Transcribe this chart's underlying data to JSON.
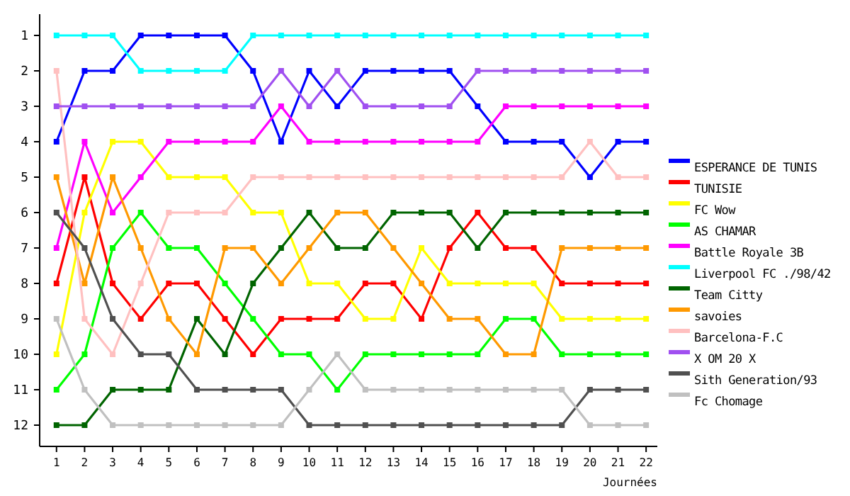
{
  "chart_data": {
    "type": "line",
    "xlabel": "Journées",
    "x": [
      1,
      2,
      3,
      4,
      5,
      6,
      7,
      8,
      9,
      10,
      11,
      12,
      13,
      14,
      15,
      16,
      17,
      18,
      19,
      20,
      21,
      22
    ],
    "xlim": [
      0.4,
      22.4
    ],
    "xticks": [
      1,
      2,
      3,
      4,
      5,
      6,
      7,
      8,
      9,
      10,
      11,
      12,
      13,
      14,
      15,
      16,
      17,
      18,
      19,
      20,
      21,
      22
    ],
    "ylim": [
      12.6,
      0.4
    ],
    "yticks": [
      1,
      2,
      3,
      4,
      5,
      6,
      7,
      8,
      9,
      10,
      11,
      12
    ],
    "marker": "square",
    "grid": false,
    "legend": "right",
    "series": [
      {
        "name": "ESPERANCE DE TUNIS",
        "color": "#0000ff",
        "values": [
          4,
          2,
          2,
          1,
          1,
          1,
          1,
          2,
          4,
          2,
          3,
          2,
          2,
          2,
          2,
          3,
          4,
          4,
          4,
          5,
          4,
          4
        ]
      },
      {
        "name": "TUNISIE",
        "color": "#ff0000",
        "values": [
          8,
          5,
          8,
          9,
          8,
          8,
          9,
          10,
          9,
          9,
          9,
          8,
          8,
          9,
          7,
          6,
          7,
          7,
          8,
          8,
          8,
          8
        ]
      },
      {
        "name": "FC Wow",
        "color": "#ffff00",
        "values": [
          10,
          6,
          4,
          4,
          5,
          5,
          5,
          6,
          6,
          8,
          8,
          9,
          9,
          7,
          8,
          8,
          8,
          8,
          9,
          9,
          9,
          9
        ]
      },
      {
        "name": "AS CHAMAR",
        "color": "#00ff00",
        "values": [
          11,
          10,
          7,
          6,
          7,
          7,
          8,
          9,
          10,
          10,
          11,
          10,
          10,
          10,
          10,
          10,
          9,
          9,
          10,
          10,
          10,
          10
        ]
      },
      {
        "name": "Battle Royale 3B",
        "color": "#ff00ff",
        "values": [
          7,
          4,
          6,
          5,
          4,
          4,
          4,
          4,
          3,
          4,
          4,
          4,
          4,
          4,
          4,
          4,
          3,
          3,
          3,
          3,
          3,
          3
        ]
      },
      {
        "name": "Liverpool FC ./98/42",
        "color": "#00ffff",
        "values": [
          1,
          1,
          1,
          2,
          2,
          2,
          2,
          1,
          1,
          1,
          1,
          1,
          1,
          1,
          1,
          1,
          1,
          1,
          1,
          1,
          1,
          1
        ]
      },
      {
        "name": "Team Citty",
        "color": "#006400",
        "values": [
          12,
          12,
          11,
          11,
          11,
          9,
          10,
          8,
          7,
          6,
          7,
          7,
          6,
          6,
          6,
          7,
          6,
          6,
          6,
          6,
          6,
          6
        ]
      },
      {
        "name": "savoies",
        "color": "#ff9900",
        "values": [
          5,
          8,
          5,
          7,
          9,
          10,
          7,
          7,
          8,
          7,
          6,
          6,
          7,
          8,
          9,
          9,
          10,
          10,
          7,
          7,
          7,
          7
        ]
      },
      {
        "name": "Barcelona-F.C",
        "color": "#ffc0c0",
        "values": [
          2,
          9,
          10,
          8,
          6,
          6,
          6,
          5,
          5,
          5,
          5,
          5,
          5,
          5,
          5,
          5,
          5,
          5,
          5,
          4,
          5,
          5
        ]
      },
      {
        "name": "X OM 20 X",
        "color": "#a050f0",
        "values": [
          3,
          3,
          3,
          3,
          3,
          3,
          3,
          3,
          2,
          3,
          2,
          3,
          3,
          3,
          3,
          2,
          2,
          2,
          2,
          2,
          2,
          2
        ]
      },
      {
        "name": "Sith Generation/93",
        "color": "#505050",
        "values": [
          6,
          7,
          9,
          10,
          10,
          11,
          11,
          11,
          11,
          12,
          12,
          12,
          12,
          12,
          12,
          12,
          12,
          12,
          12,
          11,
          11,
          11
        ]
      },
      {
        "name": "Fc Chomage",
        "color": "#c0c0c0",
        "values": [
          9,
          11,
          12,
          12,
          12,
          12,
          12,
          12,
          12,
          11,
          10,
          11,
          11,
          11,
          11,
          11,
          11,
          11,
          11,
          12,
          12,
          12
        ]
      }
    ]
  }
}
